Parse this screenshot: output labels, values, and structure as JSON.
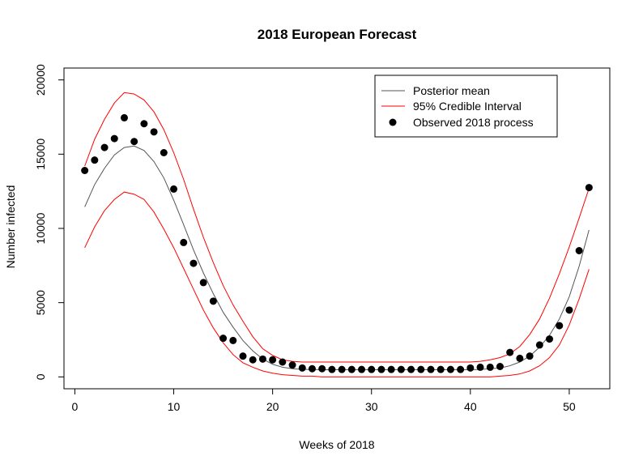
{
  "chart_data": {
    "type": "line",
    "title": "2018 European Forecast",
    "xlabel": "Weeks of 2018",
    "ylabel": "Number infected",
    "xlim": [
      -1.1,
      54.1
    ],
    "ylim": [
      -800,
      20800
    ],
    "x_ticks": [
      0,
      10,
      20,
      30,
      40,
      50
    ],
    "y_ticks": [
      0,
      5000,
      10000,
      15000,
      20000
    ],
    "grid": false,
    "legend_position": "top-right",
    "x": [
      1,
      2,
      3,
      4,
      5,
      6,
      7,
      8,
      9,
      10,
      11,
      12,
      13,
      14,
      15,
      16,
      17,
      18,
      19,
      20,
      21,
      22,
      23,
      24,
      25,
      26,
      27,
      28,
      29,
      30,
      31,
      32,
      33,
      34,
      35,
      36,
      37,
      38,
      39,
      40,
      41,
      42,
      43,
      44,
      45,
      46,
      47,
      48,
      49,
      50,
      51,
      52
    ],
    "series": [
      {
        "name": "Posterior mean",
        "kind": "line",
        "color": "#555555",
        "values": [
          11450,
          12950,
          14050,
          14950,
          15450,
          15550,
          15250,
          14500,
          13400,
          11900,
          10250,
          8550,
          7000,
          5600,
          4350,
          3350,
          2450,
          1750,
          1200,
          850,
          650,
          550,
          500,
          500,
          480,
          480,
          480,
          480,
          480,
          480,
          480,
          480,
          480,
          480,
          480,
          480,
          480,
          480,
          480,
          480,
          500,
          550,
          600,
          750,
          1000,
          1400,
          2000,
          2800,
          3900,
          5400,
          7450,
          9900
        ]
      },
      {
        "name": "95% Credible Interval",
        "kind": "line",
        "color": "#ff0000",
        "values": [
          14200,
          16000,
          17350,
          18450,
          19150,
          19050,
          18650,
          17850,
          16650,
          15100,
          13300,
          11300,
          9400,
          7700,
          6150,
          4850,
          3750,
          2700,
          1900,
          1450,
          1150,
          1050,
          1000,
          1000,
          1000,
          1000,
          1000,
          1000,
          1000,
          1000,
          1000,
          1000,
          1000,
          1000,
          1000,
          1000,
          1000,
          1000,
          1000,
          1000,
          1050,
          1150,
          1300,
          1550,
          2050,
          2850,
          3900,
          5300,
          6950,
          8750,
          10700,
          12700
        ]
      },
      {
        "name": "",
        "kind": "line",
        "color": "#ff0000",
        "values": [
          8700,
          10100,
          11200,
          11950,
          12450,
          12300,
          11950,
          11100,
          9950,
          8700,
          7300,
          5900,
          4500,
          3300,
          2300,
          1500,
          950,
          650,
          400,
          250,
          150,
          100,
          50,
          50,
          0,
          0,
          0,
          0,
          0,
          0,
          0,
          0,
          0,
          0,
          0,
          0,
          0,
          0,
          0,
          0,
          0,
          0,
          50,
          100,
          200,
          400,
          750,
          1300,
          2150,
          3500,
          5250,
          7250
        ]
      },
      {
        "name": "Observed 2018 process",
        "kind": "points",
        "color": "#000000",
        "values": [
          13900,
          14600,
          15450,
          16050,
          17450,
          15850,
          17050,
          16500,
          15100,
          12650,
          9050,
          7650,
          6350,
          5100,
          2600,
          2450,
          1400,
          1150,
          1200,
          1150,
          1000,
          800,
          600,
          550,
          550,
          500,
          500,
          500,
          500,
          500,
          500,
          500,
          500,
          500,
          500,
          500,
          500,
          500,
          500,
          600,
          650,
          650,
          700,
          1650,
          1250,
          1400,
          2150,
          2550,
          3450,
          4500,
          8500,
          12750
        ]
      }
    ]
  }
}
